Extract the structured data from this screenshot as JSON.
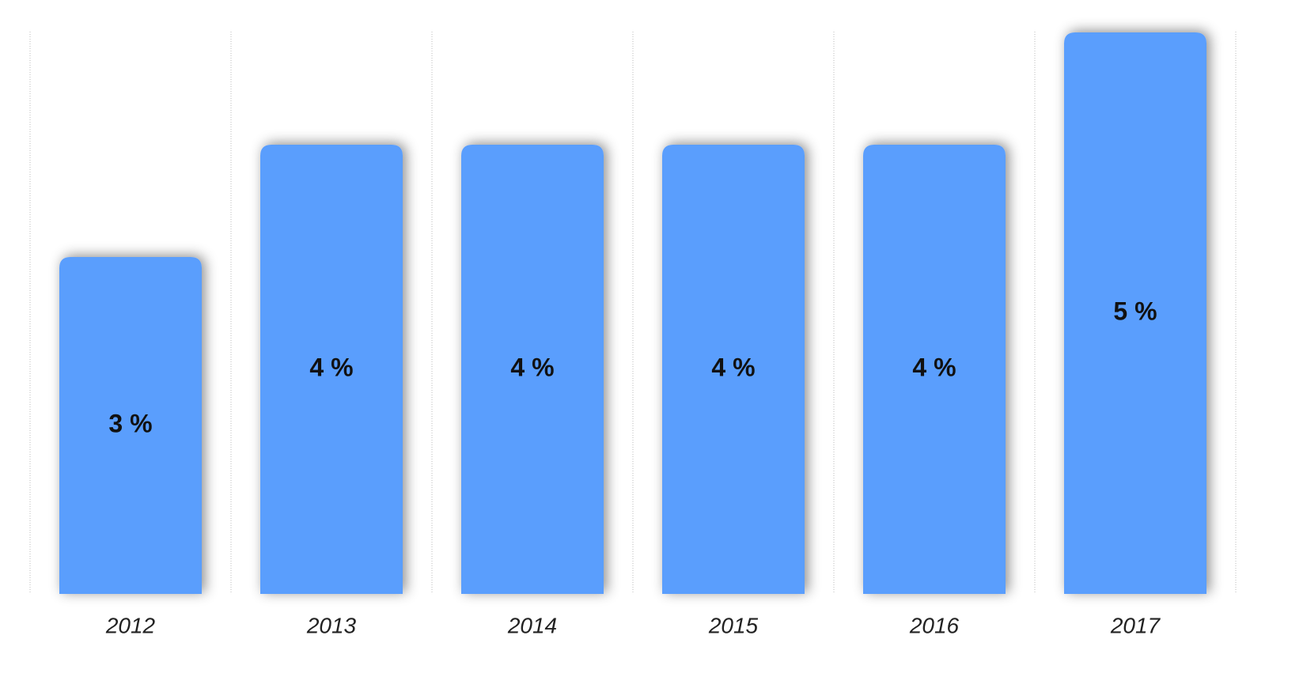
{
  "chart_data": {
    "type": "bar",
    "categories": [
      "2012",
      "2013",
      "2014",
      "2015",
      "2016",
      "2017"
    ],
    "values": [
      3,
      4,
      4,
      4,
      4,
      5
    ],
    "value_labels": [
      "3 %",
      "4 %",
      "4 %",
      "4 %",
      "4 %",
      "5 %"
    ],
    "color": "#5a9efd",
    "ylim": [
      0,
      5
    ]
  }
}
